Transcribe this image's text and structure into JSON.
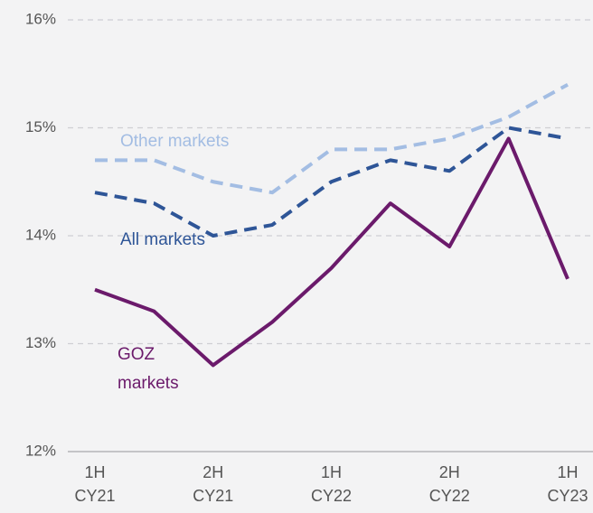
{
  "chart_data": {
    "type": "line",
    "categories": [
      "1H CY21",
      null,
      "2H CY21",
      null,
      "1H CY22",
      null,
      "2H CY22",
      null,
      "1H CY23"
    ],
    "series": [
      {
        "name": "Other markets",
        "color": "#a3bde3",
        "dashed": true,
        "values": [
          14.7,
          14.7,
          14.5,
          14.4,
          14.8,
          14.8,
          14.9,
          15.1,
          15.4
        ]
      },
      {
        "name": "All markets",
        "color": "#2e5597",
        "dashed": true,
        "values": [
          14.4,
          14.3,
          14.0,
          14.1,
          14.5,
          14.7,
          14.6,
          15.0,
          14.9
        ]
      },
      {
        "name": "GOZ markets",
        "color": "#6b1a6b",
        "dashed": false,
        "values": [
          13.5,
          13.3,
          12.8,
          13.2,
          13.7,
          14.3,
          13.9,
          14.9,
          13.6
        ]
      }
    ],
    "ylim": [
      12,
      16
    ],
    "yticks": [
      {
        "value": 12,
        "label": "12%"
      },
      {
        "value": 13,
        "label": "13%"
      },
      {
        "value": 14,
        "label": "14%"
      },
      {
        "value": 15,
        "label": "15%"
      },
      {
        "value": 16,
        "label": "16%"
      }
    ],
    "grid": true
  }
}
